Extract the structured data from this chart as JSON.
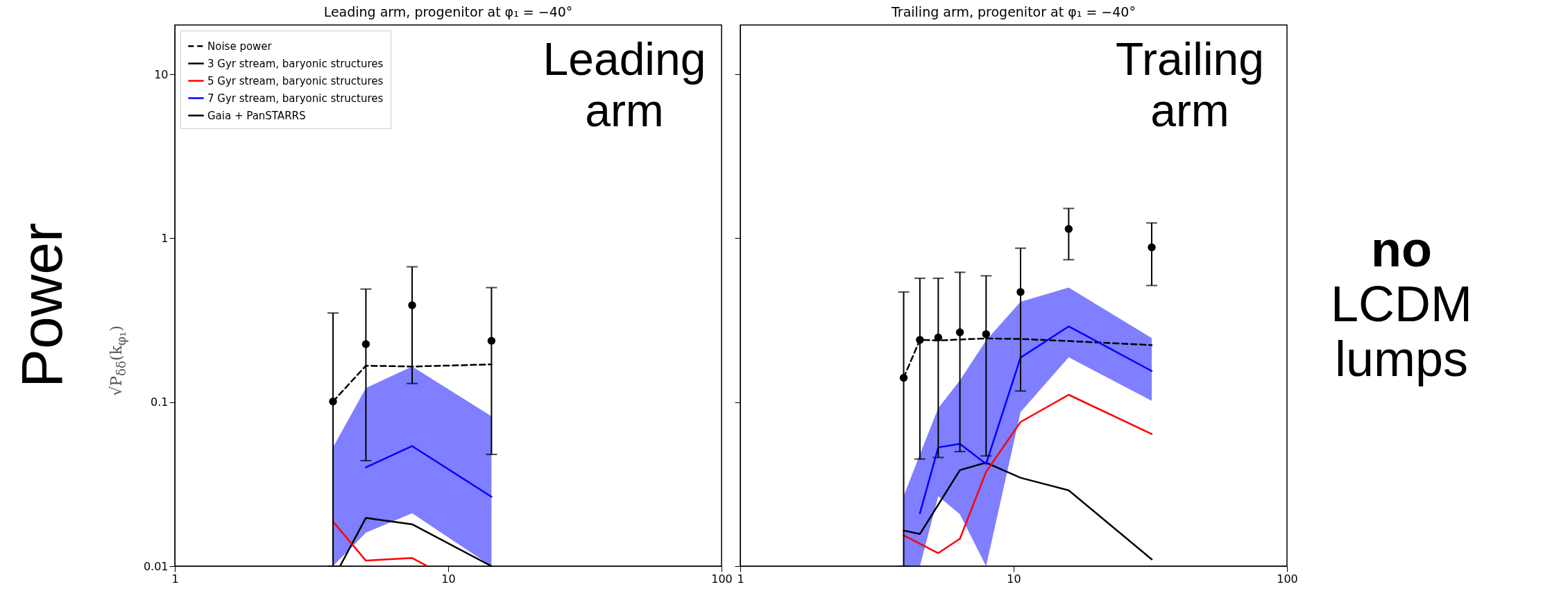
{
  "chart_data": [
    {
      "type": "line",
      "title": "Leading arm, progenitor at φ₁ = −40°",
      "ylabel": "√P$_{δδ}$(k$_{φ₁}$)",
      "annotations": [
        "Leading arm",
        "Power"
      ],
      "log": "xy",
      "xlim": [
        1,
        100
      ],
      "xticks": [
        1,
        10,
        100
      ],
      "ylim": [
        0.01,
        20
      ],
      "yticks": [
        0.01,
        0.1,
        1,
        10
      ],
      "legend": "top left",
      "series": [
        {
          "name": "Noise power",
          "color": "#000000",
          "line_style": "dashed",
          "x": [
            3.79,
            5,
            7.38,
            14.4
          ],
          "values": [
            0.101,
            0.167,
            0.165,
            0.17
          ]
        },
        {
          "name": "3 Gyr stream, baryonic structures",
          "color": "#000000",
          "x": [
            4.02,
            5,
            7.38,
            14.4
          ],
          "values": [
            0.01,
            0.0197,
            0.018,
            0.01
          ]
        },
        {
          "name": "5 Gyr stream, baryonic structures",
          "color": "#ff0000",
          "x": [
            3.79,
            5,
            7.38,
            8.4
          ],
          "values": [
            0.0187,
            0.0108,
            0.0112,
            0.01
          ]
        },
        {
          "name": "7 Gyr stream, baryonic structures",
          "color": "#0000ff",
          "x": [
            3.79,
            5,
            7.38,
            14.4
          ],
          "values": [
            null,
            0.04,
            0.054,
            0.0265
          ],
          "lower": [
            0.01,
            0.016,
            0.021,
            0.01
          ],
          "upper": [
            0.053,
            0.122,
            0.165,
            0.082
          ]
        },
        {
          "name": "Gaia + PanSTARRS",
          "type": "scatter",
          "marker": "circle",
          "color": "#000000",
          "x": [
            3.79,
            5,
            7.38,
            14.4
          ],
          "values": [
            0.101,
            0.226,
            0.39,
            0.237
          ],
          "errors": [
            [
              0.01,
              0.35
            ],
            [
              0.044,
              0.49
            ],
            [
              0.13,
              0.67
            ],
            [
              0.048,
              0.5
            ]
          ]
        }
      ]
    },
    {
      "type": "line",
      "title": "Trailing arm, progenitor at φ₁ = −40°",
      "annotations": [
        "Trailing arm",
        "no LCDM lumps"
      ],
      "log": "xy",
      "xlim": [
        1,
        100
      ],
      "xticks": [
        1,
        10,
        100
      ],
      "ylim": [
        0.01,
        20
      ],
      "yticks": [
        0.01,
        0.1,
        1,
        10
      ],
      "tick_labels": "x",
      "series": [
        {
          "color": "#000000",
          "line_style": "dashed",
          "x": [
            3.96,
            4.54,
            5.3,
            7.93,
            10.6,
            15.9,
            32
          ],
          "values": [
            0.141,
            0.24,
            0.238,
            0.245,
            0.243,
            0.236,
            0.223
          ]
        },
        {
          "color": "#000000",
          "x": [
            3.96,
            4.54,
            6.36,
            7.93,
            10.6,
            15.9,
            32
          ],
          "values": [
            0.0165,
            0.0157,
            0.0385,
            0.0428,
            0.0346,
            0.029,
            0.011
          ]
        },
        {
          "color": "#ff0000",
          "x": [
            3.96,
            5.3,
            6.36,
            7.93,
            10.6,
            15.9,
            32
          ],
          "values": [
            0.0154,
            0.012,
            0.0147,
            0.0376,
            0.0757,
            0.111,
            0.064
          ]
        },
        {
          "color": "#0000ff",
          "x": [
            3.96,
            4.54,
            5.3,
            6.36,
            7.93,
            10.6,
            15.9,
            32
          ],
          "values": [
            null,
            0.021,
            0.053,
            0.0557,
            0.042,
            0.187,
            0.29,
            0.155
          ],
          "lower": [
            0.01,
            0.01,
            0.0267,
            0.0207,
            0.01,
            0.087,
            0.188,
            0.102
          ],
          "upper": [
            0.0267,
            0.048,
            0.092,
            0.136,
            0.238,
            0.41,
            0.5,
            0.246
          ]
        },
        {
          "type": "scatter",
          "marker": "circle",
          "color": "#000000",
          "x": [
            3.96,
            4.54,
            5.3,
            6.36,
            7.93,
            10.6,
            15.9,
            32
          ],
          "values": [
            0.141,
            0.24,
            0.248,
            0.267,
            0.26,
            0.47,
            1.14,
            0.88
          ],
          "errors": [
            [
              0.01,
              0.47
            ],
            [
              0.045,
              0.57
            ],
            [
              0.046,
              0.57
            ],
            [
              0.05,
              0.62
            ],
            [
              0.047,
              0.59
            ],
            [
              0.117,
              0.87
            ],
            [
              0.74,
              1.52
            ],
            [
              0.515,
              1.24
            ]
          ]
        }
      ]
    }
  ]
}
